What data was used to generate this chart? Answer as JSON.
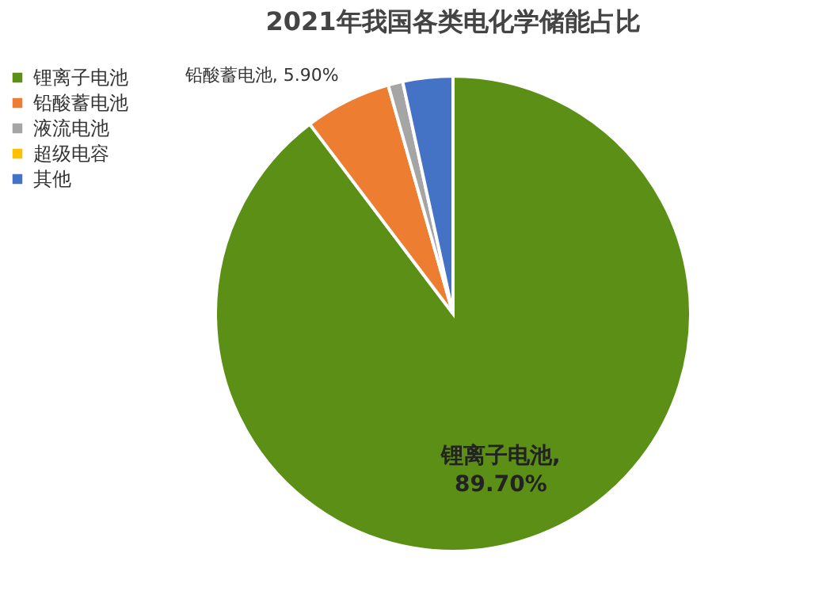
{
  "chart_data": {
    "type": "pie",
    "title": "2021年我国各类电化学储能占比",
    "categories": [
      "锂离子电池",
      "铅酸蓄电池",
      "液流电池",
      "超级电容",
      "其他"
    ],
    "values": [
      89.7,
      5.9,
      1.0,
      null,
      3.4
    ],
    "colors": [
      "#5b8f16",
      "#ed7d31",
      "#a5a5a5",
      "#ffc000",
      "#4472c4"
    ],
    "value_labels": [
      "锂离子电池, 89.70%",
      "铅酸蓄电池, 5.90%",
      null,
      null,
      null
    ],
    "legend": "left"
  }
}
